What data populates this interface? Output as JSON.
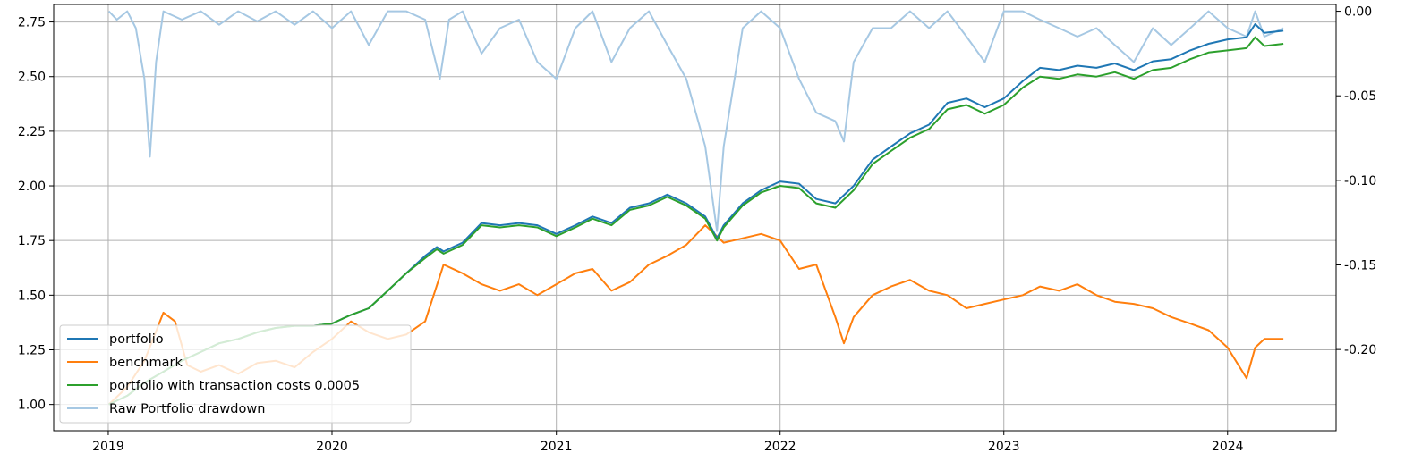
{
  "chart_data": {
    "type": "line",
    "title": "",
    "xlabel": "",
    "ylabel": "",
    "x_ticks": [
      "2019",
      "2020",
      "2021",
      "2022",
      "2023",
      "2024"
    ],
    "xlim": [
      "2018-10-04",
      "2024-06-26"
    ],
    "ylim_left": [
      0.88,
      2.83
    ],
    "ylim_right": [
      -0.248,
      0.004
    ],
    "y_ticks_left": [
      "1.00",
      "1.25",
      "1.50",
      "1.75",
      "2.00",
      "2.25",
      "2.50",
      "2.75"
    ],
    "y_ticks_right": [
      "-0.20",
      "-0.15",
      "-0.10",
      "-0.05",
      "0.00"
    ],
    "grid": true,
    "legend_position": "lower-left",
    "series": [
      {
        "name": "portfolio",
        "color": "#1f77b4",
        "axis": "left",
        "points": [
          [
            "2019-01-02",
            1.0
          ],
          [
            "2019-02-01",
            1.04
          ],
          [
            "2019-03-01",
            1.1
          ],
          [
            "2019-04-01",
            1.15
          ],
          [
            "2019-05-01",
            1.2
          ],
          [
            "2019-06-01",
            1.24
          ],
          [
            "2019-07-01",
            1.28
          ],
          [
            "2019-08-01",
            1.3
          ],
          [
            "2019-09-01",
            1.33
          ],
          [
            "2019-10-01",
            1.35
          ],
          [
            "2019-11-01",
            1.36
          ],
          [
            "2019-12-01",
            1.36
          ],
          [
            "2020-01-01",
            1.37
          ],
          [
            "2020-02-01",
            1.41
          ],
          [
            "2020-03-01",
            1.44
          ],
          [
            "2020-04-01",
            1.52
          ],
          [
            "2020-05-01",
            1.6
          ],
          [
            "2020-06-01",
            1.68
          ],
          [
            "2020-06-20",
            1.72
          ],
          [
            "2020-07-01",
            1.7
          ],
          [
            "2020-08-01",
            1.74
          ],
          [
            "2020-09-01",
            1.83
          ],
          [
            "2020-10-01",
            1.82
          ],
          [
            "2020-11-01",
            1.83
          ],
          [
            "2020-12-01",
            1.82
          ],
          [
            "2021-01-01",
            1.78
          ],
          [
            "2021-02-01",
            1.82
          ],
          [
            "2021-03-01",
            1.86
          ],
          [
            "2021-04-01",
            1.83
          ],
          [
            "2021-05-01",
            1.9
          ],
          [
            "2021-06-01",
            1.92
          ],
          [
            "2021-07-01",
            1.96
          ],
          [
            "2021-08-01",
            1.92
          ],
          [
            "2021-09-01",
            1.86
          ],
          [
            "2021-09-20",
            1.76
          ],
          [
            "2021-10-01",
            1.82
          ],
          [
            "2021-11-01",
            1.92
          ],
          [
            "2021-12-01",
            1.98
          ],
          [
            "2022-01-01",
            2.02
          ],
          [
            "2022-02-01",
            2.01
          ],
          [
            "2022-03-01",
            1.94
          ],
          [
            "2022-04-01",
            1.92
          ],
          [
            "2022-05-01",
            2.0
          ],
          [
            "2022-06-01",
            2.12
          ],
          [
            "2022-07-01",
            2.18
          ],
          [
            "2022-08-01",
            2.24
          ],
          [
            "2022-09-01",
            2.28
          ],
          [
            "2022-10-01",
            2.38
          ],
          [
            "2022-11-01",
            2.4
          ],
          [
            "2022-12-01",
            2.36
          ],
          [
            "2023-01-01",
            2.4
          ],
          [
            "2023-02-01",
            2.48
          ],
          [
            "2023-03-01",
            2.54
          ],
          [
            "2023-04-01",
            2.53
          ],
          [
            "2023-05-01",
            2.55
          ],
          [
            "2023-06-01",
            2.54
          ],
          [
            "2023-07-01",
            2.56
          ],
          [
            "2023-08-01",
            2.53
          ],
          [
            "2023-09-01",
            2.57
          ],
          [
            "2023-10-01",
            2.58
          ],
          [
            "2023-11-01",
            2.62
          ],
          [
            "2023-12-01",
            2.65
          ],
          [
            "2024-01-01",
            2.67
          ],
          [
            "2024-02-01",
            2.68
          ],
          [
            "2024-02-15",
            2.74
          ],
          [
            "2024-03-01",
            2.7
          ],
          [
            "2024-04-01",
            2.71
          ]
        ]
      },
      {
        "name": "benchmark",
        "color": "#ff7f0e",
        "axis": "left",
        "points": [
          [
            "2019-01-02",
            1.0
          ],
          [
            "2019-02-01",
            1.08
          ],
          [
            "2019-03-01",
            1.2
          ],
          [
            "2019-04-01",
            1.42
          ],
          [
            "2019-04-20",
            1.38
          ],
          [
            "2019-05-10",
            1.18
          ],
          [
            "2019-06-01",
            1.15
          ],
          [
            "2019-07-01",
            1.18
          ],
          [
            "2019-08-01",
            1.14
          ],
          [
            "2019-09-01",
            1.19
          ],
          [
            "2019-10-01",
            1.2
          ],
          [
            "2019-11-01",
            1.17
          ],
          [
            "2019-12-01",
            1.24
          ],
          [
            "2020-01-01",
            1.3
          ],
          [
            "2020-02-01",
            1.38
          ],
          [
            "2020-03-01",
            1.33
          ],
          [
            "2020-04-01",
            1.3
          ],
          [
            "2020-05-01",
            1.32
          ],
          [
            "2020-06-01",
            1.38
          ],
          [
            "2020-07-01",
            1.64
          ],
          [
            "2020-08-01",
            1.6
          ],
          [
            "2020-09-01",
            1.55
          ],
          [
            "2020-10-01",
            1.52
          ],
          [
            "2020-11-01",
            1.55
          ],
          [
            "2020-12-01",
            1.5
          ],
          [
            "2021-01-01",
            1.55
          ],
          [
            "2021-02-01",
            1.6
          ],
          [
            "2021-03-01",
            1.62
          ],
          [
            "2021-04-01",
            1.52
          ],
          [
            "2021-05-01",
            1.56
          ],
          [
            "2021-06-01",
            1.64
          ],
          [
            "2021-07-01",
            1.68
          ],
          [
            "2021-08-01",
            1.73
          ],
          [
            "2021-09-01",
            1.82
          ],
          [
            "2021-10-01",
            1.74
          ],
          [
            "2021-11-01",
            1.76
          ],
          [
            "2021-12-01",
            1.78
          ],
          [
            "2022-01-01",
            1.75
          ],
          [
            "2022-02-01",
            1.62
          ],
          [
            "2022-03-01",
            1.64
          ],
          [
            "2022-04-01",
            1.4
          ],
          [
            "2022-04-15",
            1.28
          ],
          [
            "2022-05-01",
            1.4
          ],
          [
            "2022-06-01",
            1.5
          ],
          [
            "2022-07-01",
            1.54
          ],
          [
            "2022-08-01",
            1.57
          ],
          [
            "2022-09-01",
            1.52
          ],
          [
            "2022-10-01",
            1.5
          ],
          [
            "2022-11-01",
            1.44
          ],
          [
            "2022-12-01",
            1.46
          ],
          [
            "2023-01-01",
            1.48
          ],
          [
            "2023-02-01",
            1.5
          ],
          [
            "2023-03-01",
            1.54
          ],
          [
            "2023-04-01",
            1.52
          ],
          [
            "2023-05-01",
            1.55
          ],
          [
            "2023-06-01",
            1.5
          ],
          [
            "2023-07-01",
            1.47
          ],
          [
            "2023-08-01",
            1.46
          ],
          [
            "2023-09-01",
            1.44
          ],
          [
            "2023-10-01",
            1.4
          ],
          [
            "2023-11-01",
            1.37
          ],
          [
            "2023-12-01",
            1.34
          ],
          [
            "2024-01-01",
            1.26
          ],
          [
            "2024-02-01",
            1.12
          ],
          [
            "2024-02-15",
            1.26
          ],
          [
            "2024-03-01",
            1.3
          ],
          [
            "2024-04-01",
            1.3
          ]
        ]
      },
      {
        "name": "portfolio with transaction costs 0.0005",
        "color": "#2ca02c",
        "axis": "left",
        "points": [
          [
            "2019-01-02",
            1.0
          ],
          [
            "2019-02-01",
            1.04
          ],
          [
            "2019-03-01",
            1.1
          ],
          [
            "2019-04-01",
            1.15
          ],
          [
            "2019-05-01",
            1.2
          ],
          [
            "2019-06-01",
            1.24
          ],
          [
            "2019-07-01",
            1.28
          ],
          [
            "2019-08-01",
            1.3
          ],
          [
            "2019-09-01",
            1.33
          ],
          [
            "2019-10-01",
            1.35
          ],
          [
            "2019-11-01",
            1.36
          ],
          [
            "2019-12-01",
            1.36
          ],
          [
            "2020-01-01",
            1.37
          ],
          [
            "2020-02-01",
            1.41
          ],
          [
            "2020-03-01",
            1.44
          ],
          [
            "2020-04-01",
            1.52
          ],
          [
            "2020-05-01",
            1.6
          ],
          [
            "2020-06-01",
            1.67
          ],
          [
            "2020-06-20",
            1.71
          ],
          [
            "2020-07-01",
            1.69
          ],
          [
            "2020-08-01",
            1.73
          ],
          [
            "2020-09-01",
            1.82
          ],
          [
            "2020-10-01",
            1.81
          ],
          [
            "2020-11-01",
            1.82
          ],
          [
            "2020-12-01",
            1.81
          ],
          [
            "2021-01-01",
            1.77
          ],
          [
            "2021-02-01",
            1.81
          ],
          [
            "2021-03-01",
            1.85
          ],
          [
            "2021-04-01",
            1.82
          ],
          [
            "2021-05-01",
            1.89
          ],
          [
            "2021-06-01",
            1.91
          ],
          [
            "2021-07-01",
            1.95
          ],
          [
            "2021-08-01",
            1.91
          ],
          [
            "2021-09-01",
            1.85
          ],
          [
            "2021-09-20",
            1.75
          ],
          [
            "2021-10-01",
            1.81
          ],
          [
            "2021-11-01",
            1.91
          ],
          [
            "2021-12-01",
            1.97
          ],
          [
            "2022-01-01",
            2.0
          ],
          [
            "2022-02-01",
            1.99
          ],
          [
            "2022-03-01",
            1.92
          ],
          [
            "2022-04-01",
            1.9
          ],
          [
            "2022-05-01",
            1.98
          ],
          [
            "2022-06-01",
            2.1
          ],
          [
            "2022-07-01",
            2.16
          ],
          [
            "2022-08-01",
            2.22
          ],
          [
            "2022-09-01",
            2.26
          ],
          [
            "2022-10-01",
            2.35
          ],
          [
            "2022-11-01",
            2.37
          ],
          [
            "2022-12-01",
            2.33
          ],
          [
            "2023-01-01",
            2.37
          ],
          [
            "2023-02-01",
            2.45
          ],
          [
            "2023-03-01",
            2.5
          ],
          [
            "2023-04-01",
            2.49
          ],
          [
            "2023-05-01",
            2.51
          ],
          [
            "2023-06-01",
            2.5
          ],
          [
            "2023-07-01",
            2.52
          ],
          [
            "2023-08-01",
            2.49
          ],
          [
            "2023-09-01",
            2.53
          ],
          [
            "2023-10-01",
            2.54
          ],
          [
            "2023-11-01",
            2.58
          ],
          [
            "2023-12-01",
            2.61
          ],
          [
            "2024-01-01",
            2.62
          ],
          [
            "2024-02-01",
            2.63
          ],
          [
            "2024-02-15",
            2.68
          ],
          [
            "2024-03-01",
            2.64
          ],
          [
            "2024-04-01",
            2.65
          ]
        ]
      },
      {
        "name": "Raw Portfolio drawdown",
        "color": "#a6c8e3",
        "axis": "right",
        "points": [
          [
            "2019-01-02",
            0.0
          ],
          [
            "2019-01-15",
            -0.005
          ],
          [
            "2019-02-01",
            0.0
          ],
          [
            "2019-02-15",
            -0.01
          ],
          [
            "2019-03-01",
            -0.04
          ],
          [
            "2019-03-10",
            -0.086
          ],
          [
            "2019-03-20",
            -0.03
          ],
          [
            "2019-04-01",
            0.0
          ],
          [
            "2019-05-01",
            -0.005
          ],
          [
            "2019-06-01",
            0.0
          ],
          [
            "2019-07-01",
            -0.008
          ],
          [
            "2019-08-01",
            0.0
          ],
          [
            "2019-09-01",
            -0.006
          ],
          [
            "2019-10-01",
            0.0
          ],
          [
            "2019-11-01",
            -0.008
          ],
          [
            "2019-12-01",
            0.0
          ],
          [
            "2020-01-01",
            -0.01
          ],
          [
            "2020-02-01",
            0.0
          ],
          [
            "2020-03-01",
            -0.02
          ],
          [
            "2020-04-01",
            0.0
          ],
          [
            "2020-05-01",
            0.0
          ],
          [
            "2020-06-01",
            -0.005
          ],
          [
            "2020-06-25",
            -0.04
          ],
          [
            "2020-07-10",
            -0.005
          ],
          [
            "2020-08-01",
            0.0
          ],
          [
            "2020-09-01",
            -0.025
          ],
          [
            "2020-10-01",
            -0.01
          ],
          [
            "2020-11-01",
            -0.005
          ],
          [
            "2020-12-01",
            -0.03
          ],
          [
            "2021-01-01",
            -0.04
          ],
          [
            "2021-02-01",
            -0.01
          ],
          [
            "2021-03-01",
            0.0
          ],
          [
            "2021-04-01",
            -0.03
          ],
          [
            "2021-05-01",
            -0.01
          ],
          [
            "2021-06-01",
            0.0
          ],
          [
            "2021-07-01",
            -0.02
          ],
          [
            "2021-08-01",
            -0.04
          ],
          [
            "2021-09-01",
            -0.08
          ],
          [
            "2021-09-20",
            -0.13
          ],
          [
            "2021-10-01",
            -0.08
          ],
          [
            "2021-11-01",
            -0.01
          ],
          [
            "2021-12-01",
            0.0
          ],
          [
            "2022-01-01",
            -0.01
          ],
          [
            "2022-02-01",
            -0.04
          ],
          [
            "2022-03-01",
            -0.06
          ],
          [
            "2022-04-01",
            -0.065
          ],
          [
            "2022-04-15",
            -0.077
          ],
          [
            "2022-05-01",
            -0.03
          ],
          [
            "2022-06-01",
            -0.01
          ],
          [
            "2022-07-01",
            -0.01
          ],
          [
            "2022-08-01",
            0.0
          ],
          [
            "2022-09-01",
            -0.01
          ],
          [
            "2022-10-01",
            0.0
          ],
          [
            "2022-11-01",
            -0.015
          ],
          [
            "2022-12-01",
            -0.03
          ],
          [
            "2023-01-01",
            0.0
          ],
          [
            "2023-02-01",
            0.0
          ],
          [
            "2023-03-01",
            -0.005
          ],
          [
            "2023-04-01",
            -0.01
          ],
          [
            "2023-05-01",
            -0.015
          ],
          [
            "2023-06-01",
            -0.01
          ],
          [
            "2023-07-01",
            -0.02
          ],
          [
            "2023-08-01",
            -0.03
          ],
          [
            "2023-09-01",
            -0.01
          ],
          [
            "2023-10-01",
            -0.02
          ],
          [
            "2023-11-01",
            -0.01
          ],
          [
            "2023-12-01",
            0.0
          ],
          [
            "2024-01-01",
            -0.01
          ],
          [
            "2024-02-01",
            -0.015
          ],
          [
            "2024-02-15",
            0.0
          ],
          [
            "2024-03-01",
            -0.015
          ],
          [
            "2024-04-01",
            -0.01
          ]
        ]
      }
    ]
  }
}
